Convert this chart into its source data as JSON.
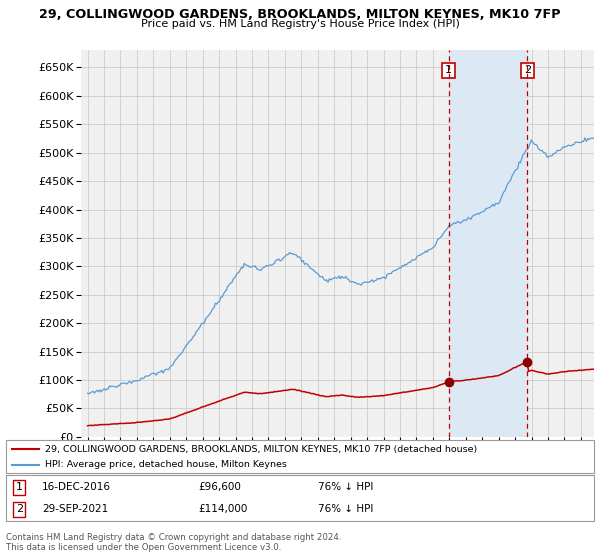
{
  "title_line1": "29, COLLINGWOOD GARDENS, BROOKLANDS, MILTON KEYNES, MK10 7FP",
  "title_line2": "Price paid vs. HM Land Registry's House Price Index (HPI)",
  "hpi_color": "#5b9bd5",
  "price_color": "#c00000",
  "marker_color": "#8b0000",
  "vline_color": "#c00000",
  "grid_color": "#cccccc",
  "bg_color": "#ffffff",
  "plot_bg_color": "#f0f0f0",
  "shade_color": "#dce9f5",
  "ylim": [
    0,
    680000
  ],
  "ytick_step": 50000,
  "transaction1_x": 2016.96,
  "transaction1_price": 96600,
  "transaction2_x": 2021.75,
  "transaction2_price": 114000,
  "legend_entry1": "29, COLLINGWOOD GARDENS, BROOKLANDS, MILTON KEYNES, MK10 7FP (detached house)",
  "legend_entry2": "HPI: Average price, detached house, Milton Keynes",
  "footer1": "Contains HM Land Registry data © Crown copyright and database right 2024.",
  "footer2": "This data is licensed under the Open Government Licence v3.0.",
  "note1_label": "1",
  "note1_date": "16-DEC-2016",
  "note1_price": "£96,600",
  "note1_hpi": "76% ↓ HPI",
  "note2_label": "2",
  "note2_date": "29-SEP-2021",
  "note2_price": "£114,000",
  "note2_hpi": "76% ↓ HPI"
}
